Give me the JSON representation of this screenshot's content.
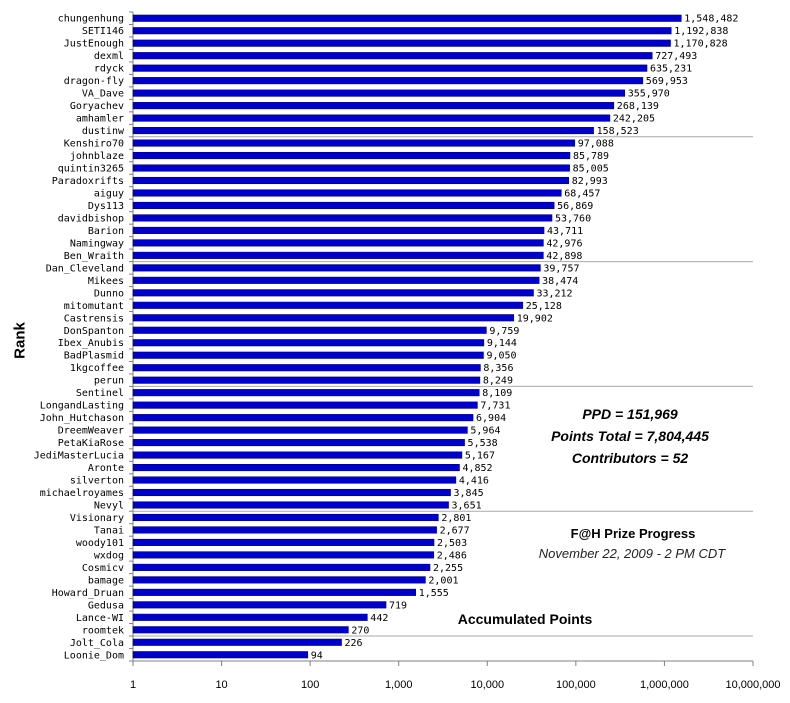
{
  "chart_data": {
    "type": "bar",
    "orientation": "horizontal",
    "title": "F@H Prize Progress",
    "subtitle": "November 22, 2009 - 2 PM CDT",
    "xlabel": "Accumulated Points",
    "ylabel": "Rank",
    "xscale": "log",
    "xlim": [
      1,
      10000000
    ],
    "xticks": [
      "1",
      "10",
      "100",
      "1,000",
      "10,000",
      "100,000",
      "1,000,000",
      "10,000,000"
    ],
    "grid": "horizontal every 10 ranks",
    "colors": {
      "bar": "#0000cc",
      "bar_edge": "#000080",
      "axis": "#888888"
    },
    "annotations": [
      "PPD = 151,969",
      "Points Total = 7,804,445",
      "Contributors = 52"
    ],
    "categories": [
      "chungenhung",
      "SETI146",
      "JustEnough",
      "dexml",
      "rdyck",
      "dragon-fly",
      "VA_Dave",
      "Goryachev",
      "amhamler",
      "dustinw",
      "Kenshiro70",
      "johnblaze",
      "quintin3265",
      "Paradoxrifts",
      "aiguy",
      "Dys113",
      "davidbishop",
      "Barion",
      "Namingway",
      "Ben_Wraith",
      "Dan_Cleveland",
      "Mikees",
      "Dunno",
      "mitomutant",
      "Castrensis",
      "DonSpanton",
      "Ibex_Anubis",
      "BadPlasmid",
      "1kgcoffee",
      "perun",
      "Sentinel",
      "LongandLasting",
      "John_Hutchason",
      "DreemWeaver",
      "PetaKiaRose",
      "JediMasterLucia",
      "Aronte",
      "silverton",
      "michaelroyames",
      "Nevyl",
      "Visionary",
      "Tanai",
      "woody101",
      "wxdog",
      "Cosmicv",
      "bamage",
      "Howard_Druan",
      "Gedusa",
      "Lance-WI",
      "roomtek",
      "Jolt_Cola",
      "Loonie_Dom"
    ],
    "values": [
      1548482,
      1192838,
      1170828,
      727493,
      635231,
      569953,
      355970,
      268139,
      242205,
      158523,
      97088,
      85789,
      85005,
      82993,
      68457,
      56869,
      53760,
      43711,
      42976,
      42898,
      39757,
      38474,
      33212,
      25128,
      19902,
      9759,
      9144,
      9050,
      8356,
      8249,
      8109,
      7731,
      6904,
      5964,
      5538,
      5167,
      4852,
      4416,
      3845,
      3651,
      2801,
      2677,
      2503,
      2486,
      2255,
      2001,
      1555,
      719,
      442,
      270,
      226,
      94
    ],
    "value_labels": [
      "1,548,482",
      "1,192,838",
      "1,170,828",
      "727,493",
      "635,231",
      "569,953",
      "355,970",
      "268,139",
      "242,205",
      "158,523",
      "97,088",
      "85,789",
      "85,005",
      "82,993",
      "68,457",
      "56,869",
      "53,760",
      "43,711",
      "42,976",
      "42,898",
      "39,757",
      "38,474",
      "33,212",
      "25,128",
      "19,902",
      "9,759",
      "9,144",
      "9,050",
      "8,356",
      "8,249",
      "8,109",
      "7,731",
      "6,904",
      "5,964",
      "5,538",
      "5,167",
      "4,852",
      "4,416",
      "3,845",
      "3,651",
      "2,801",
      "2,677",
      "2,503",
      "2,486",
      "2,255",
      "2,001",
      "1,555",
      "719",
      "442",
      "270",
      "226",
      "94"
    ]
  }
}
